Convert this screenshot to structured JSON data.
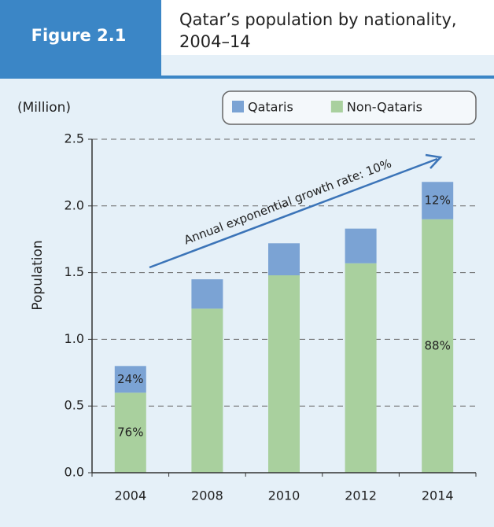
{
  "chart_data": {
    "type": "stacked_bar",
    "figure_label": "Figure 2.1",
    "title": [
      "Qatar’s population by nationality,",
      "2004–14"
    ],
    "unit_label": "(Million)",
    "y_label": "Population",
    "annotation": "Annual exponential growth rate: 10%",
    "categories": [
      "2004",
      "2008",
      "2010",
      "2012",
      "2014"
    ],
    "series": [
      {
        "name": "Non-Qataris",
        "color": "#a9d09e",
        "values": [
          0.6,
          1.23,
          1.48,
          1.57,
          1.9
        ],
        "share_labels": [
          "76%",
          null,
          null,
          null,
          "88%"
        ]
      },
      {
        "name": "Qataris",
        "color": "#7ba3d4",
        "values": [
          0.2,
          0.22,
          0.24,
          0.26,
          0.28
        ],
        "share_labels": [
          "24%",
          null,
          null,
          null,
          "12%"
        ]
      }
    ],
    "legend_order": [
      1,
      0
    ],
    "ylim": [
      0,
      2.5
    ],
    "yticks": [
      {
        "value": 0,
        "label": "0.0"
      },
      0.5,
      {
        "value": 1,
        "label": "1.0"
      },
      1.5,
      {
        "value": 2,
        "label": "2.0"
      },
      2.5
    ],
    "grid": true
  }
}
